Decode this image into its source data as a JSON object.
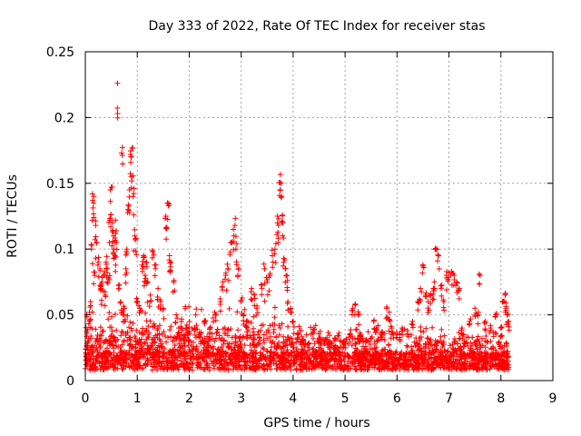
{
  "chart_data": {
    "type": "scatter",
    "title": "Day 333 of 2022, Rate Of TEC Index for receiver stas",
    "xlabel": "GPS time / hours",
    "ylabel": "ROTI / TECUs",
    "xlim": [
      0,
      9
    ],
    "ylim": [
      0,
      0.25
    ],
    "x_ticks": [
      0,
      1,
      2,
      3,
      4,
      5,
      6,
      7,
      8,
      9
    ],
    "y_ticks": [
      0,
      0.05,
      0.1,
      0.15,
      0.2,
      0.25
    ],
    "x_tick_labels": [
      "0",
      "1",
      "2",
      "3",
      "4",
      "5",
      "6",
      "7",
      "8",
      "9"
    ],
    "y_tick_labels": [
      "0",
      "0.05",
      "0.1",
      "0.15",
      "0.2",
      "0.25"
    ],
    "grid": true,
    "legend": "none",
    "marker": "plus",
    "color": "#ff0000",
    "series": [
      {
        "points": [
          [
            0.02,
            0.018
          ],
          [
            0.05,
            0.03
          ],
          [
            0.08,
            0.045
          ],
          [
            0.1,
            0.06
          ],
          [
            0.12,
            0.1
          ],
          [
            0.14,
            0.137
          ],
          [
            0.16,
            0.135
          ],
          [
            0.18,
            0.08
          ],
          [
            0.2,
            0.118
          ],
          [
            0.22,
            0.105
          ],
          [
            0.25,
            0.09
          ],
          [
            0.28,
            0.085
          ],
          [
            0.3,
            0.07
          ],
          [
            0.32,
            0.075
          ],
          [
            0.35,
            0.08
          ],
          [
            0.38,
            0.065
          ],
          [
            0.4,
            0.09
          ],
          [
            0.42,
            0.085
          ],
          [
            0.45,
            0.078
          ],
          [
            0.47,
            0.122
          ],
          [
            0.48,
            0.145
          ],
          [
            0.5,
            0.147
          ],
          [
            0.52,
            0.12
          ],
          [
            0.54,
            0.11
          ],
          [
            0.55,
            0.1
          ],
          [
            0.57,
            0.095
          ],
          [
            0.58,
            0.122
          ],
          [
            0.6,
            0.105
          ],
          [
            0.62,
            0.226
          ],
          [
            0.65,
            0.07
          ],
          [
            0.68,
            0.06
          ],
          [
            0.7,
            0.173
          ],
          [
            0.72,
            0.05
          ],
          [
            0.75,
            0.055
          ],
          [
            0.78,
            0.085
          ],
          [
            0.8,
            0.1
          ],
          [
            0.82,
            0.13
          ],
          [
            0.85,
            0.145
          ],
          [
            0.87,
            0.172
          ],
          [
            0.88,
            0.17
          ],
          [
            0.9,
            0.177
          ],
          [
            0.92,
            0.14
          ],
          [
            0.95,
            0.11
          ],
          [
            0.97,
            0.108
          ],
          [
            1.0,
            0.06
          ],
          [
            1.05,
            0.055
          ],
          [
            1.1,
            0.085
          ],
          [
            1.12,
            0.095
          ],
          [
            1.15,
            0.08
          ],
          [
            1.18,
            0.09
          ],
          [
            1.2,
            0.075
          ],
          [
            1.25,
            0.065
          ],
          [
            1.3,
            0.098
          ],
          [
            1.35,
            0.085
          ],
          [
            1.4,
            0.07
          ],
          [
            1.45,
            0.06
          ],
          [
            1.5,
            0.055
          ],
          [
            1.55,
            0.125
          ],
          [
            1.58,
            0.135
          ],
          [
            1.6,
            0.133
          ],
          [
            1.62,
            0.095
          ],
          [
            1.65,
            0.09
          ],
          [
            1.7,
            0.075
          ],
          [
            1.75,
            0.05
          ],
          [
            1.8,
            0.04
          ],
          [
            1.85,
            0.045
          ],
          [
            1.9,
            0.035
          ],
          [
            2.0,
            0.03
          ],
          [
            2.1,
            0.04
          ],
          [
            2.2,
            0.035
          ],
          [
            2.3,
            0.045
          ],
          [
            2.4,
            0.04
          ],
          [
            2.5,
            0.05
          ],
          [
            2.6,
            0.06
          ],
          [
            2.65,
            0.075
          ],
          [
            2.7,
            0.08
          ],
          [
            2.75,
            0.085
          ],
          [
            2.8,
            0.105
          ],
          [
            2.85,
            0.115
          ],
          [
            2.88,
            0.118
          ],
          [
            2.9,
            0.1
          ],
          [
            2.95,
            0.085
          ],
          [
            3.0,
            0.06
          ],
          [
            3.05,
            0.05
          ],
          [
            3.1,
            0.045
          ],
          [
            3.2,
            0.07
          ],
          [
            3.25,
            0.065
          ],
          [
            3.3,
            0.055
          ],
          [
            3.4,
            0.07
          ],
          [
            3.45,
            0.085
          ],
          [
            3.5,
            0.075
          ],
          [
            3.55,
            0.08
          ],
          [
            3.6,
            0.095
          ],
          [
            3.65,
            0.1
          ],
          [
            3.7,
            0.125
          ],
          [
            3.72,
            0.123
          ],
          [
            3.75,
            0.145
          ],
          [
            3.77,
            0.15
          ],
          [
            3.78,
            0.14
          ],
          [
            3.8,
            0.12
          ],
          [
            3.82,
            0.09
          ],
          [
            3.85,
            0.085
          ],
          [
            3.88,
            0.08
          ],
          [
            3.9,
            0.06
          ],
          [
            3.95,
            0.055
          ],
          [
            4.0,
            0.045
          ],
          [
            4.1,
            0.035
          ],
          [
            4.2,
            0.03
          ],
          [
            4.3,
            0.028
          ],
          [
            4.4,
            0.038
          ],
          [
            4.5,
            0.032
          ],
          [
            4.6,
            0.03
          ],
          [
            4.7,
            0.028
          ],
          [
            4.8,
            0.025
          ],
          [
            4.9,
            0.03
          ],
          [
            5.0,
            0.028
          ],
          [
            5.1,
            0.035
          ],
          [
            5.15,
            0.055
          ],
          [
            5.2,
            0.058
          ],
          [
            5.25,
            0.05
          ],
          [
            5.3,
            0.035
          ],
          [
            5.4,
            0.03
          ],
          [
            5.5,
            0.032
          ],
          [
            5.55,
            0.045
          ],
          [
            5.6,
            0.04
          ],
          [
            5.7,
            0.035
          ],
          [
            5.8,
            0.055
          ],
          [
            5.85,
            0.052
          ],
          [
            5.9,
            0.04
          ],
          [
            6.0,
            0.035
          ],
          [
            6.1,
            0.04
          ],
          [
            6.2,
            0.038
          ],
          [
            6.3,
            0.045
          ],
          [
            6.4,
            0.06
          ],
          [
            6.45,
            0.07
          ],
          [
            6.5,
            0.088
          ],
          [
            6.55,
            0.065
          ],
          [
            6.6,
            0.06
          ],
          [
            6.65,
            0.065
          ],
          [
            6.7,
            0.07
          ],
          [
            6.72,
            0.075
          ],
          [
            6.75,
            0.1
          ],
          [
            6.8,
            0.095
          ],
          [
            6.85,
            0.07
          ],
          [
            6.9,
            0.06
          ],
          [
            6.95,
            0.08
          ],
          [
            7.0,
            0.082
          ],
          [
            7.05,
            0.083
          ],
          [
            7.1,
            0.08
          ],
          [
            7.15,
            0.075
          ],
          [
            7.2,
            0.07
          ],
          [
            7.25,
            0.04
          ],
          [
            7.3,
            0.03
          ],
          [
            7.4,
            0.045
          ],
          [
            7.5,
            0.055
          ],
          [
            7.55,
            0.05
          ],
          [
            7.6,
            0.08
          ],
          [
            7.7,
            0.045
          ],
          [
            7.8,
            0.04
          ],
          [
            7.9,
            0.05
          ],
          [
            8.0,
            0.04
          ],
          [
            8.05,
            0.06
          ],
          [
            8.08,
            0.065
          ],
          [
            8.1,
            0.055
          ],
          [
            8.12,
            0.05
          ],
          [
            8.15,
            0.045
          ]
        ]
      }
    ]
  }
}
